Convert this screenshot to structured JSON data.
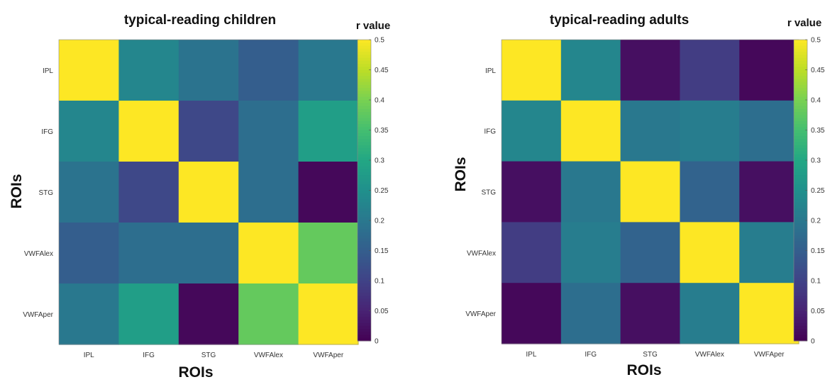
{
  "chart_data": [
    {
      "type": "heatmap",
      "title": "typical-reading children",
      "xlabel": "ROIs",
      "ylabel": "ROIs",
      "x_categories": [
        "IPL",
        "IFG",
        "STG",
        "VWFAlex",
        "VWFAper"
      ],
      "y_categories": [
        "IPL",
        "IFG",
        "STG",
        "VWFAlex",
        "VWFAper"
      ],
      "values": [
        [
          0.5,
          0.23,
          0.19,
          0.15,
          0.2
        ],
        [
          0.23,
          0.5,
          0.11,
          0.18,
          0.28
        ],
        [
          0.19,
          0.11,
          0.5,
          0.18,
          0.01
        ],
        [
          0.15,
          0.18,
          0.18,
          0.5,
          0.38
        ],
        [
          0.2,
          0.28,
          0.01,
          0.38,
          0.5
        ]
      ],
      "colorbar": {
        "title": "r value",
        "range": [
          0,
          0.5
        ],
        "ticks": [
          "0",
          "0.05",
          "0.1",
          "0.15",
          "0.2",
          "0.25",
          "0.3",
          "0.35",
          "0.4",
          "0.45",
          "0.5"
        ]
      },
      "colormap": "parula"
    },
    {
      "type": "heatmap",
      "title": "typical-reading adults",
      "xlabel": "ROIs",
      "ylabel": "ROIs",
      "x_categories": [
        "IPL",
        "IFG",
        "STG",
        "VWFAlex",
        "VWFAper"
      ],
      "y_categories": [
        "IPL",
        "IFG",
        "STG",
        "VWFAlex",
        "VWFAper"
      ],
      "values": [
        [
          0.5,
          0.23,
          0.02,
          0.09,
          0.01
        ],
        [
          0.23,
          0.5,
          0.2,
          0.21,
          0.18
        ],
        [
          0.02,
          0.2,
          0.5,
          0.16,
          0.02
        ],
        [
          0.09,
          0.21,
          0.16,
          0.5,
          0.21
        ],
        [
          0.01,
          0.18,
          0.02,
          0.21,
          0.5
        ]
      ],
      "colorbar": {
        "title": "r value",
        "range": [
          0,
          0.5
        ],
        "ticks": [
          "0",
          "0.05",
          "0.1",
          "0.15",
          "0.2",
          "0.25",
          "0.3",
          "0.35",
          "0.4",
          "0.45",
          "0.5"
        ]
      },
      "colormap": "parula"
    }
  ]
}
